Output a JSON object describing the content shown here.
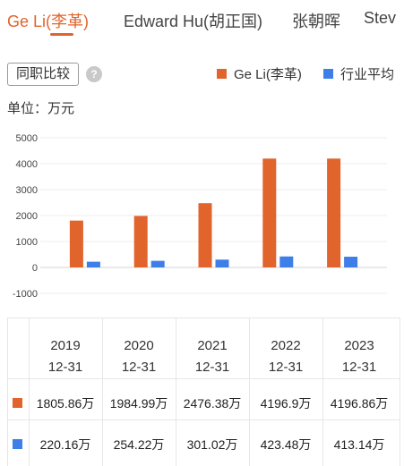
{
  "tabs": [
    {
      "label": "Ge Li(李革)",
      "active": true
    },
    {
      "label": "Edward Hu(胡正国)",
      "active": false
    },
    {
      "label": "张朝晖",
      "active": false
    },
    {
      "label": "Stev",
      "active": false
    }
  ],
  "controls": {
    "compare_button": "同职比较",
    "help_icon": "?"
  },
  "unit_label": "单位：万元",
  "colors": {
    "accent": "#e0642b",
    "series_a": "#e0642b",
    "series_b": "#3e7ee8"
  },
  "chart_data": {
    "type": "bar",
    "categories": [
      "2019 12-31",
      "2020 12-31",
      "2021 12-31",
      "2022 12-31",
      "2023 12-31"
    ],
    "series": [
      {
        "name": "Ge Li(李革)",
        "color": "#e0642b",
        "values": [
          1805.86,
          1984.99,
          2476.38,
          4196.9,
          4196.86
        ]
      },
      {
        "name": "行业平均",
        "color": "#3e7ee8",
        "values": [
          220.16,
          254.22,
          301.02,
          423.48,
          413.14
        ]
      }
    ],
    "yticks": [
      5000,
      4000,
      3000,
      2000,
      1000,
      0,
      -1000
    ],
    "ylim": [
      -1000,
      5000
    ],
    "grid": true,
    "legend_position": "top-right"
  },
  "table": {
    "headers": [
      {
        "year": "2019",
        "date": "12-31"
      },
      {
        "year": "2020",
        "date": "12-31"
      },
      {
        "year": "2021",
        "date": "12-31"
      },
      {
        "year": "2022",
        "date": "12-31"
      },
      {
        "year": "2023",
        "date": "12-31"
      }
    ],
    "rows": [
      {
        "values": [
          "1805.86万",
          "1984.99万",
          "2476.38万",
          "4196.9万",
          "4196.86万"
        ]
      },
      {
        "values": [
          "220.16万",
          "254.22万",
          "301.02万",
          "423.48万",
          "413.14万"
        ]
      }
    ]
  }
}
